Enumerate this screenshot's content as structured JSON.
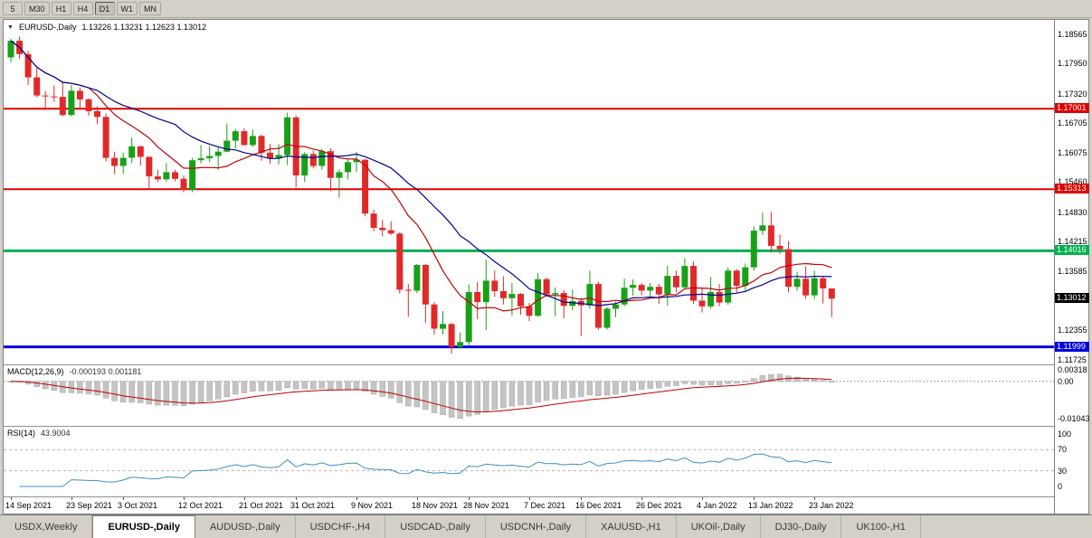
{
  "toolbar": {
    "timeframes": [
      "5",
      "M30",
      "H1",
      "H4",
      "D1",
      "W1",
      "MN"
    ],
    "active_timeframe": "D1"
  },
  "header": {
    "dropdown_icon": "▼",
    "symbol": "EURUSD-,Daily",
    "ohlc": "1.13226 1.13231 1.12623 1.13012"
  },
  "indicators": {
    "macd_label": "MACD(12,26,9)",
    "macd_values": "-0.000193 0.001181",
    "rsi_label": "RSI(14)",
    "rsi_value": "43.9004"
  },
  "tabs": [
    {
      "label": "USDX,Weekly",
      "active": false
    },
    {
      "label": "EURUSD-,Daily",
      "active": true
    },
    {
      "label": "AUDUSD-,Daily",
      "active": false
    },
    {
      "label": "USDCHF-,H4",
      "active": false
    },
    {
      "label": "USDCAD-,Daily",
      "active": false
    },
    {
      "label": "USDCNH-,Daily",
      "active": false
    },
    {
      "label": "XAUUSD-,H1",
      "active": false
    },
    {
      "label": "UKOil-,Daily",
      "active": false
    },
    {
      "label": "DJ30-,Daily",
      "active": false
    },
    {
      "label": "UK100-,H1",
      "active": false
    }
  ],
  "chart_data": {
    "type": "candlestick",
    "title": "EURUSD-,Daily",
    "symbol": "EURUSD-",
    "timeframe": "Daily",
    "price_range": [
      1.11725,
      1.18565
    ],
    "bull_color": "#18a118",
    "bear_color": "#e02a2a",
    "moving_averages": [
      {
        "name": "ma-fast",
        "period": 10,
        "color": "#c00000"
      },
      {
        "name": "ma-slow",
        "period": 20,
        "color": "#000090"
      }
    ],
    "levels": [
      {
        "name": "resistance-line-upper",
        "price": 1.17001,
        "color": "#e00000",
        "width": 2
      },
      {
        "name": "resistance-line-lower",
        "price": 1.15313,
        "color": "#e00000",
        "width": 2
      },
      {
        "name": "support-line-green",
        "price": 1.14016,
        "color": "#00b050",
        "width": 3
      },
      {
        "name": "support-line-blue",
        "price": 1.11999,
        "color": "#0000e0",
        "width": 3
      }
    ],
    "price_ticks": [
      {
        "label": "1.18565",
        "price": 1.18565
      },
      {
        "label": "1.17950",
        "price": 1.1795
      },
      {
        "label": "1.17320",
        "price": 1.1732
      },
      {
        "label": "1.16705",
        "price": 1.16705
      },
      {
        "label": "1.16075",
        "price": 1.16075
      },
      {
        "label": "1.15460",
        "price": 1.1546
      },
      {
        "label": "1.14830",
        "price": 1.1483
      },
      {
        "label": "1.14215",
        "price": 1.14215
      },
      {
        "label": "1.13585",
        "price": 1.13585
      },
      {
        "label": "1.12355",
        "price": 1.12355
      },
      {
        "label": "1.11725",
        "price": 1.11725
      }
    ],
    "price_tags": [
      {
        "label": "1.17001",
        "price": 1.17001,
        "color": "#e00000"
      },
      {
        "label": "1.15313",
        "price": 1.15313,
        "color": "#e00000"
      },
      {
        "label": "1.14016",
        "price": 1.14016,
        "color": "#00b050"
      },
      {
        "label": "1.13012",
        "price": 1.13012,
        "color": "#000000"
      },
      {
        "label": "1.11999",
        "price": 1.11999,
        "color": "#0000e0"
      }
    ],
    "date_labels": [
      {
        "label": "14 Sep 2021",
        "candle": 0
      },
      {
        "label": "23 Sep 2021",
        "candle": 7
      },
      {
        "label": "3 Oct 2021",
        "candle": 13
      },
      {
        "label": "12 Oct 2021",
        "candle": 20
      },
      {
        "label": "21 Oct 2021",
        "candle": 27
      },
      {
        "label": "31 Oct 2021",
        "candle": 33
      },
      {
        "label": "9 Nov 2021",
        "candle": 40
      },
      {
        "label": "18 Nov 2021",
        "candle": 47
      },
      {
        "label": "28 Nov 2021",
        "candle": 53
      },
      {
        "label": "7 Dec 2021",
        "candle": 60
      },
      {
        "label": "16 Dec 2021",
        "candle": 66
      },
      {
        "label": "26 Dec 2021",
        "candle": 73
      },
      {
        "label": "4 Jan 2022",
        "candle": 80
      },
      {
        "label": "13 Jan 2022",
        "candle": 86
      },
      {
        "label": "23 Jan 2022",
        "candle": 93
      }
    ],
    "macd": {
      "params": [
        12,
        26,
        9
      ],
      "display": "-0.000193 0.001181",
      "axis": [
        {
          "label": "0.00318",
          "value": 0.00318
        },
        {
          "label": "0.00",
          "value": 0
        },
        {
          "label": "-0.01043",
          "value": -0.01043
        }
      ]
    },
    "rsi": {
      "params": [
        14
      ],
      "display": "43.9004",
      "axis": [
        {
          "label": "100",
          "value": 100
        },
        {
          "label": "70",
          "value": 70
        },
        {
          "label": "30",
          "value": 30
        },
        {
          "label": "0",
          "value": 0
        }
      ]
    },
    "candles": [
      [
        1.1808,
        1.1847,
        1.1798,
        1.1843
      ],
      [
        1.1843,
        1.1852,
        1.1805,
        1.1815
      ],
      [
        1.1815,
        1.1822,
        1.175,
        1.1766
      ],
      [
        1.1766,
        1.1788,
        1.1724,
        1.1728
      ],
      [
        1.1728,
        1.1737,
        1.17,
        1.1726
      ],
      [
        1.1726,
        1.1749,
        1.1715,
        1.1725
      ],
      [
        1.1725,
        1.1756,
        1.1684,
        1.1687
      ],
      [
        1.1687,
        1.175,
        1.1684,
        1.1738
      ],
      [
        1.1738,
        1.1745,
        1.1701,
        1.172
      ],
      [
        1.172,
        1.1722,
        1.1685,
        1.1695
      ],
      [
        1.1695,
        1.1705,
        1.1668,
        1.1683
      ],
      [
        1.1683,
        1.169,
        1.159,
        1.1597
      ],
      [
        1.1597,
        1.161,
        1.1563,
        1.158
      ],
      [
        1.158,
        1.1608,
        1.1563,
        1.1597
      ],
      [
        1.1597,
        1.164,
        1.1586,
        1.1621
      ],
      [
        1.1621,
        1.1623,
        1.1581,
        1.1599
      ],
      [
        1.1599,
        1.16,
        1.1531,
        1.1558
      ],
      [
        1.1558,
        1.1572,
        1.1546,
        1.1552
      ],
      [
        1.1552,
        1.1586,
        1.1547,
        1.1567
      ],
      [
        1.1567,
        1.1572,
        1.1548,
        1.1553
      ],
      [
        1.1553,
        1.156,
        1.1525,
        1.153
      ],
      [
        1.153,
        1.1597,
        1.1525,
        1.1592
      ],
      [
        1.1592,
        1.1624,
        1.1585,
        1.1596
      ],
      [
        1.1596,
        1.1622,
        1.1588,
        1.1601
      ],
      [
        1.1601,
        1.1621,
        1.1572,
        1.161
      ],
      [
        1.161,
        1.1669,
        1.1609,
        1.1633
      ],
      [
        1.1633,
        1.1658,
        1.1617,
        1.1653
      ],
      [
        1.1653,
        1.1659,
        1.1622,
        1.1624
      ],
      [
        1.1624,
        1.1656,
        1.162,
        1.1643
      ],
      [
        1.1643,
        1.1646,
        1.1591,
        1.1608
      ],
      [
        1.1608,
        1.1626,
        1.1585,
        1.1596
      ],
      [
        1.1596,
        1.1626,
        1.1583,
        1.1603
      ],
      [
        1.1603,
        1.1692,
        1.1582,
        1.1682
      ],
      [
        1.1682,
        1.1686,
        1.1535,
        1.156
      ],
      [
        1.156,
        1.1609,
        1.1546,
        1.1605
      ],
      [
        1.1605,
        1.1612,
        1.1575,
        1.158
      ],
      [
        1.158,
        1.1616,
        1.1572,
        1.1611
      ],
      [
        1.1611,
        1.1617,
        1.1527,
        1.1555
      ],
      [
        1.1555,
        1.1573,
        1.1513,
        1.1567
      ],
      [
        1.1567,
        1.1594,
        1.1552,
        1.1588
      ],
      [
        1.1588,
        1.1609,
        1.1567,
        1.1593
      ],
      [
        1.1593,
        1.1595,
        1.1474,
        1.148
      ],
      [
        1.148,
        1.1488,
        1.1443,
        1.145
      ],
      [
        1.145,
        1.1467,
        1.1432,
        1.1445
      ],
      [
        1.1445,
        1.1464,
        1.1435,
        1.1438
      ],
      [
        1.1438,
        1.1441,
        1.1312,
        1.132
      ],
      [
        1.132,
        1.1332,
        1.1263,
        1.1318
      ],
      [
        1.1318,
        1.1374,
        1.1313,
        1.1372
      ],
      [
        1.1372,
        1.1374,
        1.125,
        1.1289
      ],
      [
        1.1289,
        1.1294,
        1.1226,
        1.1238
      ],
      [
        1.1238,
        1.1275,
        1.1226,
        1.1248
      ],
      [
        1.1248,
        1.125,
        1.1186,
        1.12
      ],
      [
        1.12,
        1.123,
        1.1196,
        1.121
      ],
      [
        1.121,
        1.1331,
        1.1203,
        1.1315
      ],
      [
        1.1315,
        1.1336,
        1.1258,
        1.1294
      ],
      [
        1.1294,
        1.1383,
        1.1235,
        1.1339
      ],
      [
        1.1339,
        1.136,
        1.1305,
        1.1317
      ],
      [
        1.1317,
        1.1348,
        1.1289,
        1.1302
      ],
      [
        1.1302,
        1.1334,
        1.1266,
        1.1311
      ],
      [
        1.1311,
        1.1313,
        1.1267,
        1.1285
      ],
      [
        1.1285,
        1.1292,
        1.1254,
        1.1265
      ],
      [
        1.1265,
        1.1355,
        1.1263,
        1.1342
      ],
      [
        1.1342,
        1.1346,
        1.1305,
        1.131
      ],
      [
        1.131,
        1.1325,
        1.1264,
        1.1313
      ],
      [
        1.1313,
        1.1319,
        1.126,
        1.1286
      ],
      [
        1.1286,
        1.132,
        1.1277,
        1.1296
      ],
      [
        1.1296,
        1.1303,
        1.1222,
        1.1287
      ],
      [
        1.1287,
        1.136,
        1.128,
        1.1332
      ],
      [
        1.1332,
        1.1336,
        1.1236,
        1.124
      ],
      [
        1.124,
        1.1283,
        1.1236,
        1.128
      ],
      [
        1.128,
        1.1295,
        1.1262,
        1.1289
      ],
      [
        1.1289,
        1.1343,
        1.1285,
        1.1324
      ],
      [
        1.1324,
        1.1342,
        1.1308,
        1.133
      ],
      [
        1.133,
        1.1334,
        1.1308,
        1.1318
      ],
      [
        1.1318,
        1.1334,
        1.1305,
        1.1326
      ],
      [
        1.1326,
        1.1332,
        1.129,
        1.131
      ],
      [
        1.131,
        1.137,
        1.1286,
        1.1349
      ],
      [
        1.1349,
        1.136,
        1.1315,
        1.1325
      ],
      [
        1.1325,
        1.1386,
        1.1321,
        1.137
      ],
      [
        1.137,
        1.1379,
        1.129,
        1.1297
      ],
      [
        1.1297,
        1.1323,
        1.1272,
        1.1285
      ],
      [
        1.1285,
        1.1347,
        1.128,
        1.1315
      ],
      [
        1.1315,
        1.1332,
        1.1285,
        1.1293
      ],
      [
        1.1293,
        1.1367,
        1.1288,
        1.136
      ],
      [
        1.136,
        1.1363,
        1.1314,
        1.1328
      ],
      [
        1.1328,
        1.1375,
        1.1315,
        1.1367
      ],
      [
        1.1367,
        1.1453,
        1.136,
        1.1444
      ],
      [
        1.1444,
        1.1482,
        1.1435,
        1.1455
      ],
      [
        1.1455,
        1.1483,
        1.1398,
        1.1412
      ],
      [
        1.1412,
        1.1436,
        1.1395,
        1.1405
      ],
      [
        1.1405,
        1.1422,
        1.1315,
        1.1326
      ],
      [
        1.1326,
        1.1358,
        1.1318,
        1.1343
      ],
      [
        1.1343,
        1.1369,
        1.1301,
        1.1308
      ],
      [
        1.1308,
        1.136,
        1.13,
        1.1344
      ],
      [
        1.1344,
        1.1349,
        1.1291,
        1.13226
      ],
      [
        1.13226,
        1.13231,
        1.12623,
        1.13012
      ]
    ]
  }
}
